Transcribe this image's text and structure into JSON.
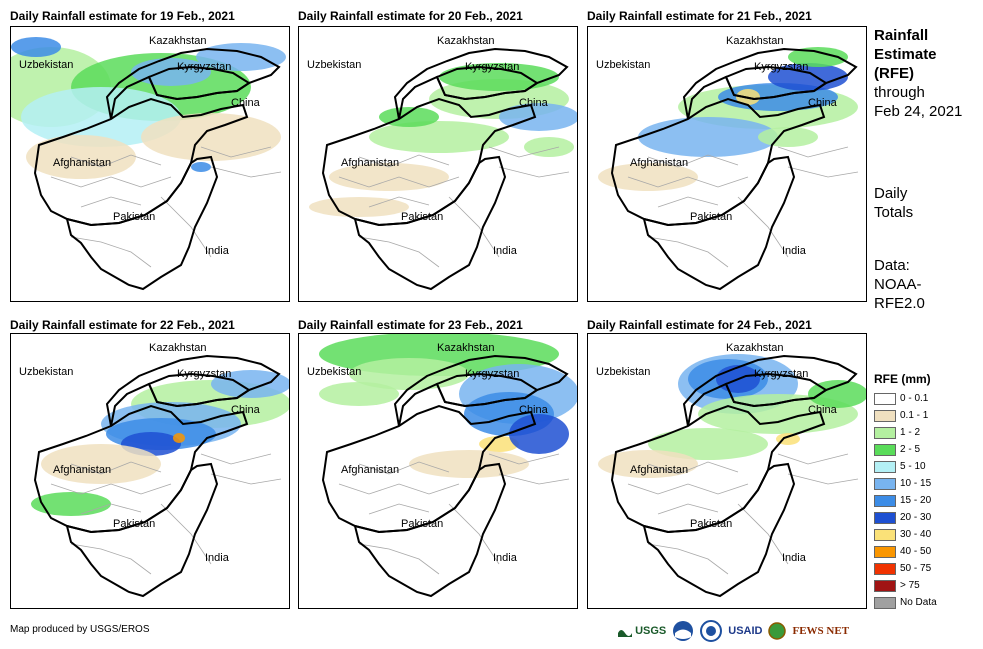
{
  "panels": [
    {
      "title": "Daily Rainfall estimate for 19 Feb., 2021"
    },
    {
      "title": "Daily Rainfall estimate for 20 Feb., 2021"
    },
    {
      "title": "Daily Rainfall estimate for 21 Feb., 2021"
    },
    {
      "title": "Daily Rainfall estimate for 22 Feb., 2021"
    },
    {
      "title": "Daily Rainfall estimate for 23 Feb., 2021"
    },
    {
      "title": "Daily Rainfall estimate for 24 Feb., 2021"
    }
  ],
  "places": {
    "kazakhstan": "Kazakhstan",
    "uzbekistan": "Uzbekistan",
    "kyrgyzstan": "Kyrgyzstan",
    "china": "China",
    "afghanistan": "Afghanistan",
    "pakistan": "Pakistan",
    "india": "India"
  },
  "side": {
    "title_line1": "Rainfall",
    "title_line2": "Estimate",
    "title_line3": "(RFE)",
    "title_line4": "through",
    "title_line5": "Feb 24, 2021",
    "daily_line1": "Daily",
    "daily_line2": "Totals",
    "data_line1": "Data:",
    "data_line2": "NOAA-",
    "data_line3": "RFE2.0"
  },
  "legend": {
    "title": "RFE (mm)",
    "items": [
      {
        "label": "0 - 0.1",
        "color": "#ffffff"
      },
      {
        "label": "0.1 - 1",
        "color": "#f0e0c0"
      },
      {
        "label": "1 - 2",
        "color": "#b4f0a0"
      },
      {
        "label": "2 - 5",
        "color": "#5adc5a"
      },
      {
        "label": "5 - 10",
        "color": "#b4f0f5"
      },
      {
        "label": "10 - 15",
        "color": "#78b4f0"
      },
      {
        "label": "15 - 20",
        "color": "#3c8ce6"
      },
      {
        "label": "20 - 30",
        "color": "#1e50d2"
      },
      {
        "label": "30 - 40",
        "color": "#fae178"
      },
      {
        "label": "40 - 50",
        "color": "#fa9600"
      },
      {
        "label": "50 - 75",
        "color": "#f03200"
      },
      {
        "label": "> 75",
        "color": "#a01414"
      },
      {
        "label": "No Data",
        "color": "#a0a0a0"
      }
    ]
  },
  "credit": "Map produced by USGS/EROS",
  "logos": {
    "usgs": "USGS",
    "usaid": "USAID",
    "fewsnet": "FEWS NET"
  }
}
